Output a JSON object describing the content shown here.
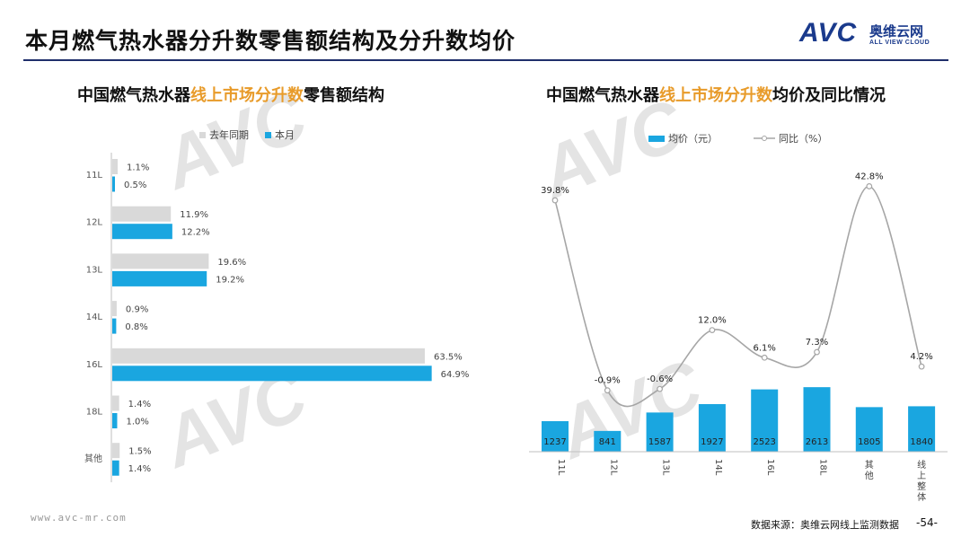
{
  "header": {
    "title": "本月燃气热水器分升数零售额结构及分升数均价",
    "logo_text": "AVC",
    "logo_cn": "奥维云网",
    "logo_en": "ALL VIEW CLOUD"
  },
  "left_chart_title": {
    "pre": "中国燃气热水器",
    "highlight": "线上市场分升数",
    "post": "零售额结构"
  },
  "right_chart_title": {
    "pre": "中国燃气热水器",
    "highlight": "线上市场分升数",
    "post": "均价及同比情况"
  },
  "footer": {
    "url": "www.avc-mr.com",
    "source": "数据来源：奥维云网线上监测数据",
    "page": "-54-"
  },
  "watermark": {
    "avc": "AVC",
    "cn": "奥维云网",
    "en": "ALL VIEW CLOUD"
  },
  "colors": {
    "accent": "#1aa6e0",
    "prev": "#d9d9d9",
    "line": "#a6a6a6",
    "highlight": "#e89b2a",
    "brand": "#1a3a8c"
  },
  "chart_data": [
    {
      "type": "bar",
      "orientation": "horizontal",
      "categories": [
        "11L",
        "12L",
        "13L",
        "14L",
        "16L",
        "18L",
        "其他"
      ],
      "series": [
        {
          "name": "去年同期",
          "values": [
            1.1,
            11.9,
            19.6,
            0.9,
            63.5,
            1.4,
            1.5
          ],
          "labels": [
            "1.1%",
            "11.9%",
            "19.6%",
            "0.9%",
            "63.5%",
            "1.4%",
            "1.5%"
          ],
          "color": "#d9d9d9"
        },
        {
          "name": "本月",
          "values": [
            0.5,
            12.2,
            19.2,
            0.8,
            64.9,
            1.0,
            1.4
          ],
          "labels": [
            "0.5%",
            "12.2%",
            "19.2%",
            "0.8%",
            "64.9%",
            "1.0%",
            "1.4%"
          ],
          "color": "#1aa6e0"
        }
      ],
      "unit": "%",
      "legend": "top"
    },
    {
      "type": "bar+line",
      "categories": [
        "11L",
        "12L",
        "13L",
        "14L",
        "16L",
        "18L",
        "其他",
        "线上整体"
      ],
      "series": [
        {
          "name": "均价（元）",
          "type": "bar",
          "values": [
            1237,
            841,
            1587,
            1927,
            2523,
            2613,
            1805,
            1840
          ],
          "labels": [
            "1237",
            "841",
            "1587",
            "1927",
            "2523",
            "2613",
            "1805",
            "1840"
          ],
          "color": "#1aa6e0"
        },
        {
          "name": "同比（%）",
          "type": "line",
          "values": [
            39.8,
            -0.9,
            -0.6,
            12.0,
            6.1,
            7.3,
            42.8,
            4.2
          ],
          "labels": [
            "39.8%",
            "-0.9%",
            "-0.6%",
            "12.0%",
            "6.1%",
            "7.3%",
            "42.8%",
            "4.2%"
          ],
          "color": "#a6a6a6"
        }
      ],
      "legend": "top"
    }
  ]
}
